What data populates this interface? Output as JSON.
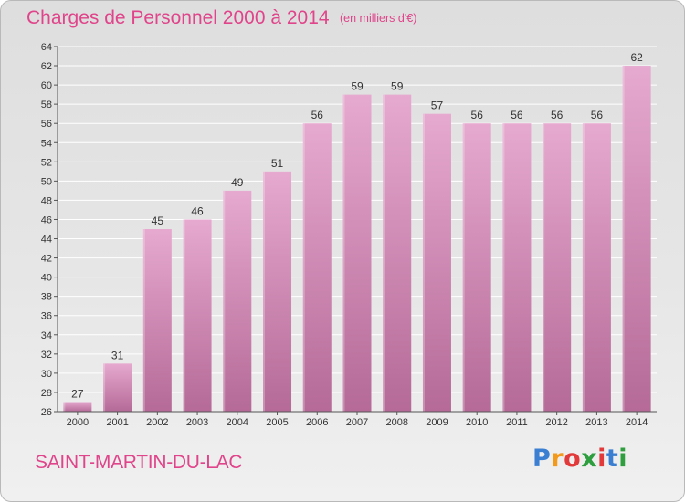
{
  "title": "Charges de Personnel 2000 à 2014",
  "subtitle": "(en milliers d'€)",
  "commune": "SAINT-MARTIN-DU-LAC",
  "logo": {
    "letters": [
      "P",
      "r",
      "o",
      "x",
      "i",
      "t",
      "i"
    ],
    "colors": [
      "#3a7fd1",
      "#f39a1b",
      "#e23a3a",
      "#2e9e3f",
      "#e23a3a",
      "#3a7fd1",
      "#2e9e3f"
    ]
  },
  "colors": {
    "accent": "#e0448a",
    "bar_top": "#e6a9cf",
    "bar_bottom": "#b56a97"
  },
  "chart_data": {
    "type": "bar",
    "categories": [
      "2000",
      "2001",
      "2002",
      "2003",
      "2004",
      "2005",
      "2006",
      "2007",
      "2008",
      "2009",
      "2010",
      "2011",
      "2012",
      "2013",
      "2014"
    ],
    "values": [
      27,
      31,
      45,
      46,
      49,
      51,
      56,
      59,
      59,
      57,
      56,
      56,
      56,
      56,
      62
    ],
    "ylim": [
      26,
      64
    ],
    "yticks": [
      26,
      28,
      30,
      32,
      34,
      36,
      38,
      40,
      42,
      44,
      46,
      48,
      50,
      52,
      54,
      56,
      58,
      60,
      62,
      64
    ],
    "grid": true,
    "xlabel": "",
    "ylabel": ""
  }
}
